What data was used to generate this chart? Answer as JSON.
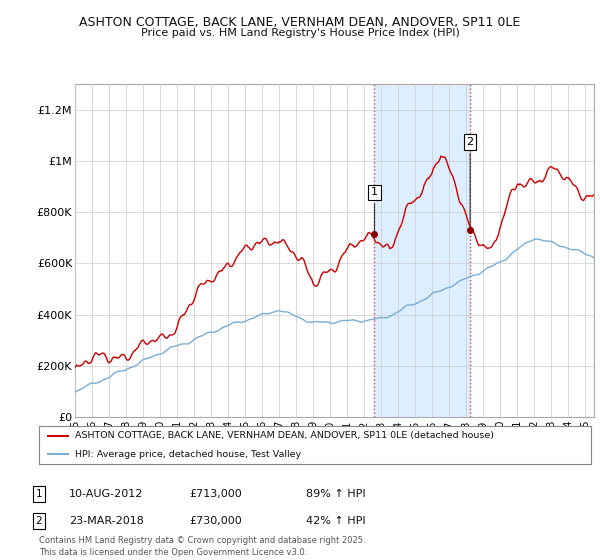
{
  "title": "ASHTON COTTAGE, BACK LANE, VERNHAM DEAN, ANDOVER, SP11 0LE",
  "subtitle": "Price paid vs. HM Land Registry's House Price Index (HPI)",
  "legend_line1": "ASHTON COTTAGE, BACK LANE, VERNHAM DEAN, ANDOVER, SP11 0LE (detached house)",
  "legend_line2": "HPI: Average price, detached house, Test Valley",
  "annotation1_date": "10-AUG-2012",
  "annotation1_price": "£713,000",
  "annotation1_hpi": "89% ↑ HPI",
  "annotation2_date": "23-MAR-2018",
  "annotation2_price": "£730,000",
  "annotation2_hpi": "42% ↑ HPI",
  "footer": "Contains HM Land Registry data © Crown copyright and database right 2025.\nThis data is licensed under the Open Government Licence v3.0.",
  "price_color": "#cc0000",
  "hpi_color": "#7aadd4",
  "background_color": "#ffffff",
  "grid_color": "#cccccc",
  "ylim": [
    0,
    1300000
  ],
  "yticks": [
    0,
    200000,
    400000,
    600000,
    800000,
    1000000,
    1200000
  ],
  "ytick_labels": [
    "£0",
    "£200K",
    "£400K",
    "£600K",
    "£800K",
    "£1M",
    "£1.2M"
  ],
  "year_start": 1995,
  "year_end": 2025,
  "sale1_year": 2012.6,
  "sale1_price": 713000,
  "sale2_year": 2018.22,
  "sale2_price": 730000,
  "shaded_color": "#ddeeff",
  "vline_color": "#dd4444"
}
